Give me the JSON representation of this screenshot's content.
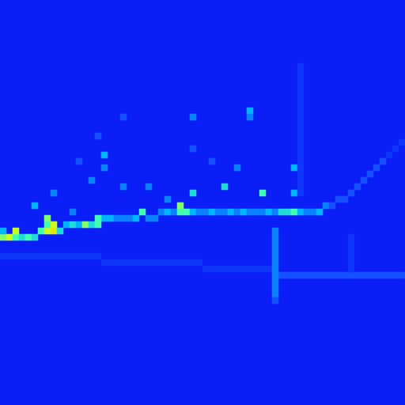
{
  "chart_data": {
    "type": "heatmap",
    "tick_labels": false,
    "n_cols": 64,
    "n_rows": 64,
    "color_range": [
      0,
      10
    ],
    "cells": [
      [
        0,
        37,
        7
      ],
      [
        0,
        36,
        4
      ],
      [
        1,
        37,
        8
      ],
      [
        2,
        37,
        6
      ],
      [
        3,
        37,
        5
      ],
      [
        4,
        37,
        6
      ],
      [
        5,
        37,
        5
      ],
      [
        6,
        36,
        6
      ],
      [
        7,
        36,
        8
      ],
      [
        7,
        35,
        6
      ],
      [
        8,
        36,
        9
      ],
      [
        9,
        36,
        5
      ],
      [
        10,
        35,
        4
      ],
      [
        11,
        35,
        5
      ],
      [
        12,
        35,
        4
      ],
      [
        13,
        35,
        7
      ],
      [
        14,
        35,
        5
      ],
      [
        15,
        35,
        6
      ],
      [
        16,
        34,
        4
      ],
      [
        17,
        34,
        4
      ],
      [
        18,
        34,
        3
      ],
      [
        19,
        34,
        3
      ],
      [
        20,
        34,
        3
      ],
      [
        21,
        34,
        4
      ],
      [
        22,
        33,
        6
      ],
      [
        23,
        34,
        3
      ],
      [
        24,
        34,
        3
      ],
      [
        25,
        33,
        3
      ],
      [
        26,
        33,
        4
      ],
      [
        27,
        33,
        3
      ],
      [
        28,
        33,
        6
      ],
      [
        29,
        33,
        6
      ],
      [
        30,
        33,
        4
      ],
      [
        31,
        33,
        3
      ],
      [
        32,
        33,
        3
      ],
      [
        33,
        33,
        4
      ],
      [
        34,
        33,
        3
      ],
      [
        35,
        33,
        3
      ],
      [
        36,
        33,
        4
      ],
      [
        37,
        33,
        3
      ],
      [
        38,
        33,
        4
      ],
      [
        39,
        33,
        3
      ],
      [
        40,
        33,
        3
      ],
      [
        41,
        33,
        3
      ],
      [
        42,
        33,
        4
      ],
      [
        43,
        33,
        3
      ],
      [
        44,
        33,
        5
      ],
      [
        45,
        33,
        5
      ],
      [
        46,
        33,
        6
      ],
      [
        47,
        33,
        4
      ],
      [
        48,
        33,
        3
      ],
      [
        49,
        33,
        3
      ],
      [
        50,
        33,
        4
      ],
      [
        51,
        32,
        3
      ],
      [
        52,
        32,
        2
      ],
      [
        53,
        31,
        2
      ],
      [
        54,
        31,
        2
      ],
      [
        55,
        30,
        2
      ],
      [
        56,
        29,
        2
      ],
      [
        57,
        28,
        2
      ],
      [
        58,
        27,
        2
      ],
      [
        59,
        26,
        2
      ],
      [
        60,
        25,
        2
      ],
      [
        61,
        24,
        1
      ],
      [
        62,
        23,
        1
      ],
      [
        63,
        22,
        1
      ],
      [
        0,
        40,
        1
      ],
      [
        1,
        40,
        1
      ],
      [
        2,
        40,
        1
      ],
      [
        3,
        40,
        1
      ],
      [
        4,
        40,
        1
      ],
      [
        5,
        40,
        1
      ],
      [
        6,
        40,
        1
      ],
      [
        7,
        40,
        1
      ],
      [
        8,
        40,
        1
      ],
      [
        9,
        40,
        1
      ],
      [
        10,
        40,
        1
      ],
      [
        11,
        40,
        1
      ],
      [
        12,
        40,
        1
      ],
      [
        13,
        40,
        1
      ],
      [
        14,
        40,
        1
      ],
      [
        15,
        40,
        1
      ],
      [
        16,
        41,
        1
      ],
      [
        17,
        41,
        1
      ],
      [
        18,
        41,
        1
      ],
      [
        19,
        41,
        1
      ],
      [
        20,
        41,
        1
      ],
      [
        21,
        41,
        1
      ],
      [
        22,
        41,
        1
      ],
      [
        23,
        41,
        1
      ],
      [
        24,
        41,
        1
      ],
      [
        25,
        41,
        1
      ],
      [
        26,
        41,
        1
      ],
      [
        27,
        41,
        1
      ],
      [
        28,
        41,
        1
      ],
      [
        29,
        41,
        1
      ],
      [
        30,
        41,
        1
      ],
      [
        31,
        41,
        1
      ],
      [
        32,
        42,
        1
      ],
      [
        33,
        42,
        1
      ],
      [
        34,
        42,
        1
      ],
      [
        35,
        42,
        1
      ],
      [
        36,
        42,
        1
      ],
      [
        37,
        42,
        1
      ],
      [
        38,
        42,
        1
      ],
      [
        39,
        42,
        1
      ],
      [
        40,
        42,
        1
      ],
      [
        41,
        42,
        1
      ],
      [
        42,
        42,
        1
      ],
      [
        44,
        43,
        2
      ],
      [
        45,
        43,
        2
      ],
      [
        46,
        43,
        2
      ],
      [
        47,
        43,
        2
      ],
      [
        48,
        43,
        2
      ],
      [
        49,
        43,
        2
      ],
      [
        50,
        43,
        2
      ],
      [
        51,
        43,
        2
      ],
      [
        52,
        43,
        2
      ],
      [
        53,
        43,
        2
      ],
      [
        54,
        43,
        2
      ],
      [
        55,
        43,
        2
      ],
      [
        56,
        43,
        2
      ],
      [
        57,
        43,
        2
      ],
      [
        58,
        43,
        2
      ],
      [
        59,
        43,
        2
      ],
      [
        60,
        43,
        2
      ],
      [
        61,
        43,
        2
      ],
      [
        62,
        43,
        2
      ],
      [
        63,
        43,
        2
      ],
      [
        39,
        17,
        4
      ],
      [
        39,
        18,
        3
      ],
      [
        30,
        18,
        3
      ],
      [
        19,
        18,
        2
      ],
      [
        16,
        24,
        4
      ],
      [
        16,
        26,
        3
      ],
      [
        15,
        21,
        2
      ],
      [
        35,
        29,
        5
      ],
      [
        37,
        26,
        3
      ],
      [
        41,
        30,
        6
      ],
      [
        46,
        26,
        4
      ],
      [
        46,
        30,
        4
      ],
      [
        30,
        30,
        5
      ],
      [
        28,
        32,
        7
      ],
      [
        26,
        31,
        3
      ],
      [
        23,
        29,
        3
      ],
      [
        19,
        29,
        3
      ],
      [
        14,
        28,
        3
      ],
      [
        11,
        33,
        3
      ],
      [
        8,
        30,
        3
      ],
      [
        7,
        34,
        7
      ],
      [
        8,
        35,
        8
      ],
      [
        5,
        32,
        4
      ],
      [
        2,
        36,
        8
      ],
      [
        15,
        34,
        6
      ],
      [
        33,
        25,
        2
      ],
      [
        30,
        23,
        2
      ],
      [
        12,
        25,
        2
      ],
      [
        47,
        10,
        1
      ],
      [
        47,
        11,
        1
      ],
      [
        47,
        12,
        1
      ],
      [
        47,
        13,
        1
      ],
      [
        47,
        14,
        1
      ],
      [
        47,
        15,
        1
      ],
      [
        47,
        16,
        1
      ],
      [
        47,
        17,
        1
      ],
      [
        47,
        18,
        1
      ],
      [
        47,
        19,
        1
      ],
      [
        47,
        20,
        1
      ],
      [
        47,
        21,
        1
      ],
      [
        47,
        22,
        1
      ],
      [
        47,
        23,
        1
      ],
      [
        47,
        24,
        1
      ],
      [
        47,
        25,
        1
      ],
      [
        47,
        26,
        1
      ],
      [
        47,
        27,
        1
      ],
      [
        47,
        28,
        1
      ],
      [
        47,
        29,
        1
      ],
      [
        47,
        30,
        1
      ],
      [
        43,
        36,
        3
      ],
      [
        43,
        37,
        3
      ],
      [
        43,
        38,
        3
      ],
      [
        43,
        39,
        3
      ],
      [
        43,
        40,
        3
      ],
      [
        43,
        41,
        3
      ],
      [
        43,
        42,
        3
      ],
      [
        43,
        43,
        3
      ],
      [
        43,
        44,
        3
      ],
      [
        43,
        45,
        3
      ],
      [
        43,
        46,
        3
      ],
      [
        43,
        47,
        2
      ],
      [
        55,
        37,
        1
      ],
      [
        55,
        38,
        1
      ],
      [
        55,
        39,
        1
      ],
      [
        55,
        40,
        1
      ],
      [
        55,
        41,
        1
      ],
      [
        55,
        42,
        1
      ]
    ]
  }
}
